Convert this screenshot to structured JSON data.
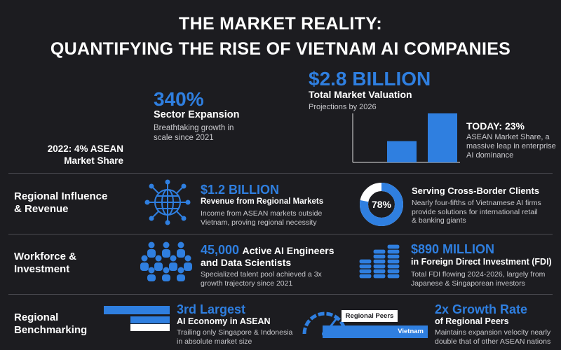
{
  "header": {
    "title_line1": "THE MARKET REALITY:",
    "title_line2": "QUANTIFYING THE RISE OF VIETNAM AI COMPANIES"
  },
  "hero": {
    "expansion": {
      "figure": "340%",
      "label": "Sector Expansion",
      "desc_line1": "Breathtaking growth in",
      "desc_line2": "scale since 2021"
    },
    "baseline": {
      "line1": "2022: 4% ASEAN",
      "line2": "Market Share"
    },
    "valuation": {
      "figure": "$2.8 BILLION",
      "label": "Total Market Valuation",
      "desc": "Projections by 2026"
    },
    "today": {
      "label": "TODAY: 23%",
      "desc_line1": "ASEAN Market Share, a",
      "desc_line2": "massive leap in enterprise",
      "desc_line3": "AI dominance"
    },
    "bars": [
      4,
      23
    ]
  },
  "rows": [
    {
      "label_line1": "Regional Influence",
      "label_line2": "& Revenue",
      "left": {
        "figure": "$1.2 BILLION",
        "head": "Revenue from Regional Markets",
        "desc_line1": "Income from ASEAN markets outside",
        "desc_line2": "Vietnam, proving regional necessity"
      },
      "right": {
        "donut_label": "78%",
        "donut_value": 78,
        "head": "Serving Cross-Border Clients",
        "desc_line1": "Nearly four-fifths of Vietnamese AI firms",
        "desc_line2": "provide solutions for international retail",
        "desc_line3": "& banking giants"
      }
    },
    {
      "label_line1": "Workforce &",
      "label_line2": "Investment",
      "left": {
        "figure": "45,000",
        "head_inline": "Active AI Engineers",
        "head_line2": "and Data Scientists",
        "desc_line1": "Specialized talent pool achieved a 3x",
        "desc_line2": "growth trajectory since 2021"
      },
      "right": {
        "figure": "$890 MILLION",
        "head": "in Foreign Direct Investment (FDI)",
        "desc_line1": "Total FDI flowing 2024-2026, largely from",
        "desc_line2": "Japanese & Singaporean investors"
      }
    },
    {
      "label_line1": "Regional",
      "label_line2": "Benchmarking",
      "left": {
        "figure": "3rd Largest",
        "head": "AI Economy in ASEAN",
        "desc_line1": "Trailing only Singapore & Indonesia",
        "desc_line2": "in absolute market size"
      },
      "right": {
        "peers_label": "Regional Peers",
        "vietnam_label": "Vietnam",
        "figure": "2x Growth Rate",
        "head": "of Regional Peers",
        "desc_line1": "Maintains expansion velocity nearly",
        "desc_line2": "double that of other ASEAN nations"
      }
    }
  ],
  "colors": {
    "accent": "#2f7fe0",
    "background": "#1c1c20",
    "text": "#ffffff"
  }
}
